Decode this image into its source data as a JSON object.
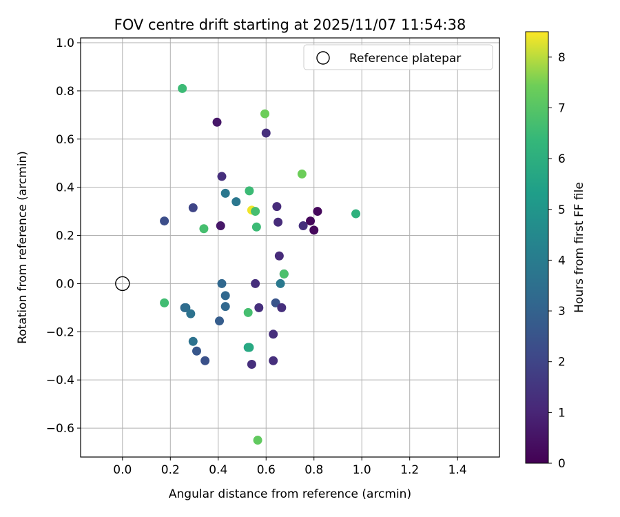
{
  "chart_data": {
    "type": "scatter",
    "title": "FOV centre drift starting at 2025/11/07 11:54:38",
    "xlabel": "Angular distance from reference (arcmin)",
    "ylabel": "Rotation from reference (arcmin)",
    "xlim": [
      -0.175,
      1.575
    ],
    "ylim": [
      -0.72,
      1.02
    ],
    "x_ticks": [
      0.0,
      0.2,
      0.4,
      0.6,
      0.8,
      1.0,
      1.2,
      1.4
    ],
    "x_tick_labels": [
      "0.0",
      "0.2",
      "0.4",
      "0.6",
      "0.8",
      "1.0",
      "1.2",
      "1.4"
    ],
    "y_ticks": [
      -0.6,
      -0.4,
      -0.2,
      0.0,
      0.2,
      0.4,
      0.6,
      0.8,
      1.0
    ],
    "y_tick_labels": [
      "−0.6",
      "−0.4",
      "−0.2",
      "0.0",
      "0.2",
      "0.4",
      "0.6",
      "0.8",
      "1.0"
    ],
    "grid": true,
    "legend": {
      "label": "Reference platepar",
      "placement": "top-right"
    },
    "reference_point": {
      "x": 0.0,
      "y": 0.0
    },
    "colorbar": {
      "label": "Hours from first FF file",
      "colormap": "viridis",
      "range": [
        0,
        8.5
      ],
      "ticks": [
        0,
        1,
        2,
        3,
        4,
        5,
        6,
        7,
        8
      ],
      "tick_labels": [
        "0",
        "1",
        "2",
        "3",
        "4",
        "5",
        "6",
        "7",
        "8"
      ]
    },
    "points": [
      {
        "x": 0.25,
        "y": 0.81,
        "c": 6.5
      },
      {
        "x": 0.395,
        "y": 0.67,
        "c": 0.6
      },
      {
        "x": 0.595,
        "y": 0.705,
        "c": 7.4
      },
      {
        "x": 0.6,
        "y": 0.625,
        "c": 1.3
      },
      {
        "x": 0.415,
        "y": 0.445,
        "c": 1.3
      },
      {
        "x": 0.75,
        "y": 0.455,
        "c": 7.4
      },
      {
        "x": 0.53,
        "y": 0.385,
        "c": 6.5
      },
      {
        "x": 0.43,
        "y": 0.375,
        "c": 3.8
      },
      {
        "x": 0.475,
        "y": 0.34,
        "c": 3.8
      },
      {
        "x": 0.295,
        "y": 0.315,
        "c": 2.0
      },
      {
        "x": 0.645,
        "y": 0.32,
        "c": 1.2
      },
      {
        "x": 0.54,
        "y": 0.305,
        "c": 8.4
      },
      {
        "x": 0.555,
        "y": 0.3,
        "c": 6.7
      },
      {
        "x": 0.815,
        "y": 0.3,
        "c": 0.2
      },
      {
        "x": 0.975,
        "y": 0.29,
        "c": 6.1
      },
      {
        "x": 0.175,
        "y": 0.26,
        "c": 2.3
      },
      {
        "x": 0.785,
        "y": 0.26,
        "c": 0.2
      },
      {
        "x": 0.65,
        "y": 0.255,
        "c": 1.2
      },
      {
        "x": 0.41,
        "y": 0.24,
        "c": 0.6
      },
      {
        "x": 0.755,
        "y": 0.24,
        "c": 1.3
      },
      {
        "x": 0.34,
        "y": 0.228,
        "c": 6.7
      },
      {
        "x": 0.56,
        "y": 0.235,
        "c": 6.5
      },
      {
        "x": 0.8,
        "y": 0.222,
        "c": 0.2
      },
      {
        "x": 0.655,
        "y": 0.115,
        "c": 1.2
      },
      {
        "x": 0.675,
        "y": 0.04,
        "c": 1.3
      },
      {
        "x": 0.675,
        "y": 0.04,
        "c": 6.8
      },
      {
        "x": 0.415,
        "y": 0.0,
        "c": 3.2
      },
      {
        "x": 0.555,
        "y": 0.0,
        "c": 1.3
      },
      {
        "x": 0.66,
        "y": 0.0,
        "c": 3.9
      },
      {
        "x": 0.175,
        "y": -0.08,
        "c": 6.6
      },
      {
        "x": 0.43,
        "y": -0.05,
        "c": 3.2
      },
      {
        "x": 0.64,
        "y": -0.08,
        "c": 2.5
      },
      {
        "x": 0.26,
        "y": -0.1,
        "c": 3.2
      },
      {
        "x": 0.265,
        "y": -0.1,
        "c": 3.4
      },
      {
        "x": 0.43,
        "y": -0.095,
        "c": 3.2
      },
      {
        "x": 0.57,
        "y": -0.1,
        "c": 1.3
      },
      {
        "x": 0.665,
        "y": -0.1,
        "c": 1.3
      },
      {
        "x": 0.285,
        "y": -0.125,
        "c": 3.6
      },
      {
        "x": 0.525,
        "y": -0.12,
        "c": 6.7
      },
      {
        "x": 0.405,
        "y": -0.155,
        "c": 2.8
      },
      {
        "x": 0.63,
        "y": -0.21,
        "c": 1.3
      },
      {
        "x": 0.295,
        "y": -0.24,
        "c": 3.6
      },
      {
        "x": 0.525,
        "y": -0.265,
        "c": 5.6
      },
      {
        "x": 0.53,
        "y": -0.265,
        "c": 5.8
      },
      {
        "x": 0.31,
        "y": -0.28,
        "c": 2.6
      },
      {
        "x": 0.345,
        "y": -0.32,
        "c": 2.4
      },
      {
        "x": 0.54,
        "y": -0.335,
        "c": 1.3
      },
      {
        "x": 0.63,
        "y": -0.32,
        "c": 1.3
      },
      {
        "x": 0.565,
        "y": -0.65,
        "c": 7.2
      }
    ]
  }
}
